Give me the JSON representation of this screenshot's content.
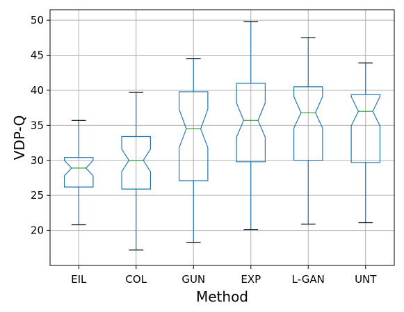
{
  "chart_data": {
    "type": "boxplot",
    "notched": true,
    "xlabel": "Method",
    "ylabel": "VDP-Q",
    "ylim": [
      15,
      51.5
    ],
    "yticks": [
      20,
      25,
      30,
      35,
      40,
      45,
      50
    ],
    "grid": true,
    "colors": {
      "box": "#1f77b4",
      "median": "#2ca02c",
      "cap": "#000000",
      "grid": "#b0b0b0"
    },
    "categories": [
      "EIL",
      "COL",
      "GUN",
      "EXP",
      "L-GAN",
      "UNT"
    ],
    "boxes": [
      {
        "label": "EIL",
        "whislo": 20.8,
        "q1": 26.2,
        "med": 28.9,
        "q3": 30.4,
        "whishi": 35.7,
        "cilo": 27.8,
        "cihi": 30.0
      },
      {
        "label": "COL",
        "whislo": 17.2,
        "q1": 25.9,
        "med": 30.0,
        "q3": 33.4,
        "whishi": 39.7,
        "cilo": 28.4,
        "cihi": 31.6
      },
      {
        "label": "GUN",
        "whislo": 18.3,
        "q1": 27.1,
        "med": 34.5,
        "q3": 39.8,
        "whishi": 44.5,
        "cilo": 31.8,
        "cihi": 37.3
      },
      {
        "label": "EXP",
        "whislo": 20.1,
        "q1": 29.8,
        "med": 35.7,
        "q3": 41.0,
        "whishi": 49.8,
        "cilo": 33.3,
        "cihi": 38.2
      },
      {
        "label": "L-GAN",
        "whislo": 20.9,
        "q1": 30.0,
        "med": 36.8,
        "q3": 40.5,
        "whishi": 47.5,
        "cilo": 34.6,
        "cihi": 39.1
      },
      {
        "label": "UNT",
        "whislo": 21.1,
        "q1": 29.7,
        "med": 37.0,
        "q3": 39.4,
        "whishi": 43.9,
        "cilo": 34.9,
        "cihi": 39.1
      }
    ]
  }
}
